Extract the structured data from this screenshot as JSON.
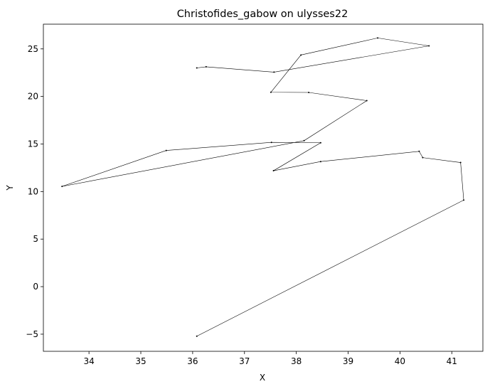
{
  "chart_data": {
    "type": "line",
    "title": "Christofides_gabow on ulysses22",
    "xlabel": "X",
    "ylabel": "Y",
    "xlim": [
      33.12,
      41.6
    ],
    "ylim": [
      -6.8,
      27.6
    ],
    "xticks": [
      34,
      35,
      36,
      37,
      38,
      39,
      40,
      41
    ],
    "yticks": [
      -5,
      0,
      5,
      10,
      15,
      20,
      25
    ],
    "grid": false,
    "legend": "none",
    "line_color": "#000000",
    "marker": "point",
    "series": [
      {
        "x": [
          36.08,
          41.23,
          41.17,
          40.44,
          40.37,
          38.47,
          37.56,
          38.47,
          37.52,
          35.49,
          33.48,
          38.15,
          39.36,
          38.24,
          37.51,
          38.09,
          39.57,
          40.56,
          37.57,
          36.26,
          36.08
        ],
        "y": [
          -5.21,
          9.1,
          13.05,
          13.57,
          14.23,
          13.15,
          12.19,
          15.13,
          15.17,
          14.32,
          10.54,
          15.35,
          19.56,
          20.42,
          20.44,
          24.36,
          26.15,
          25.32,
          22.56,
          23.12,
          23.0
        ]
      }
    ]
  }
}
